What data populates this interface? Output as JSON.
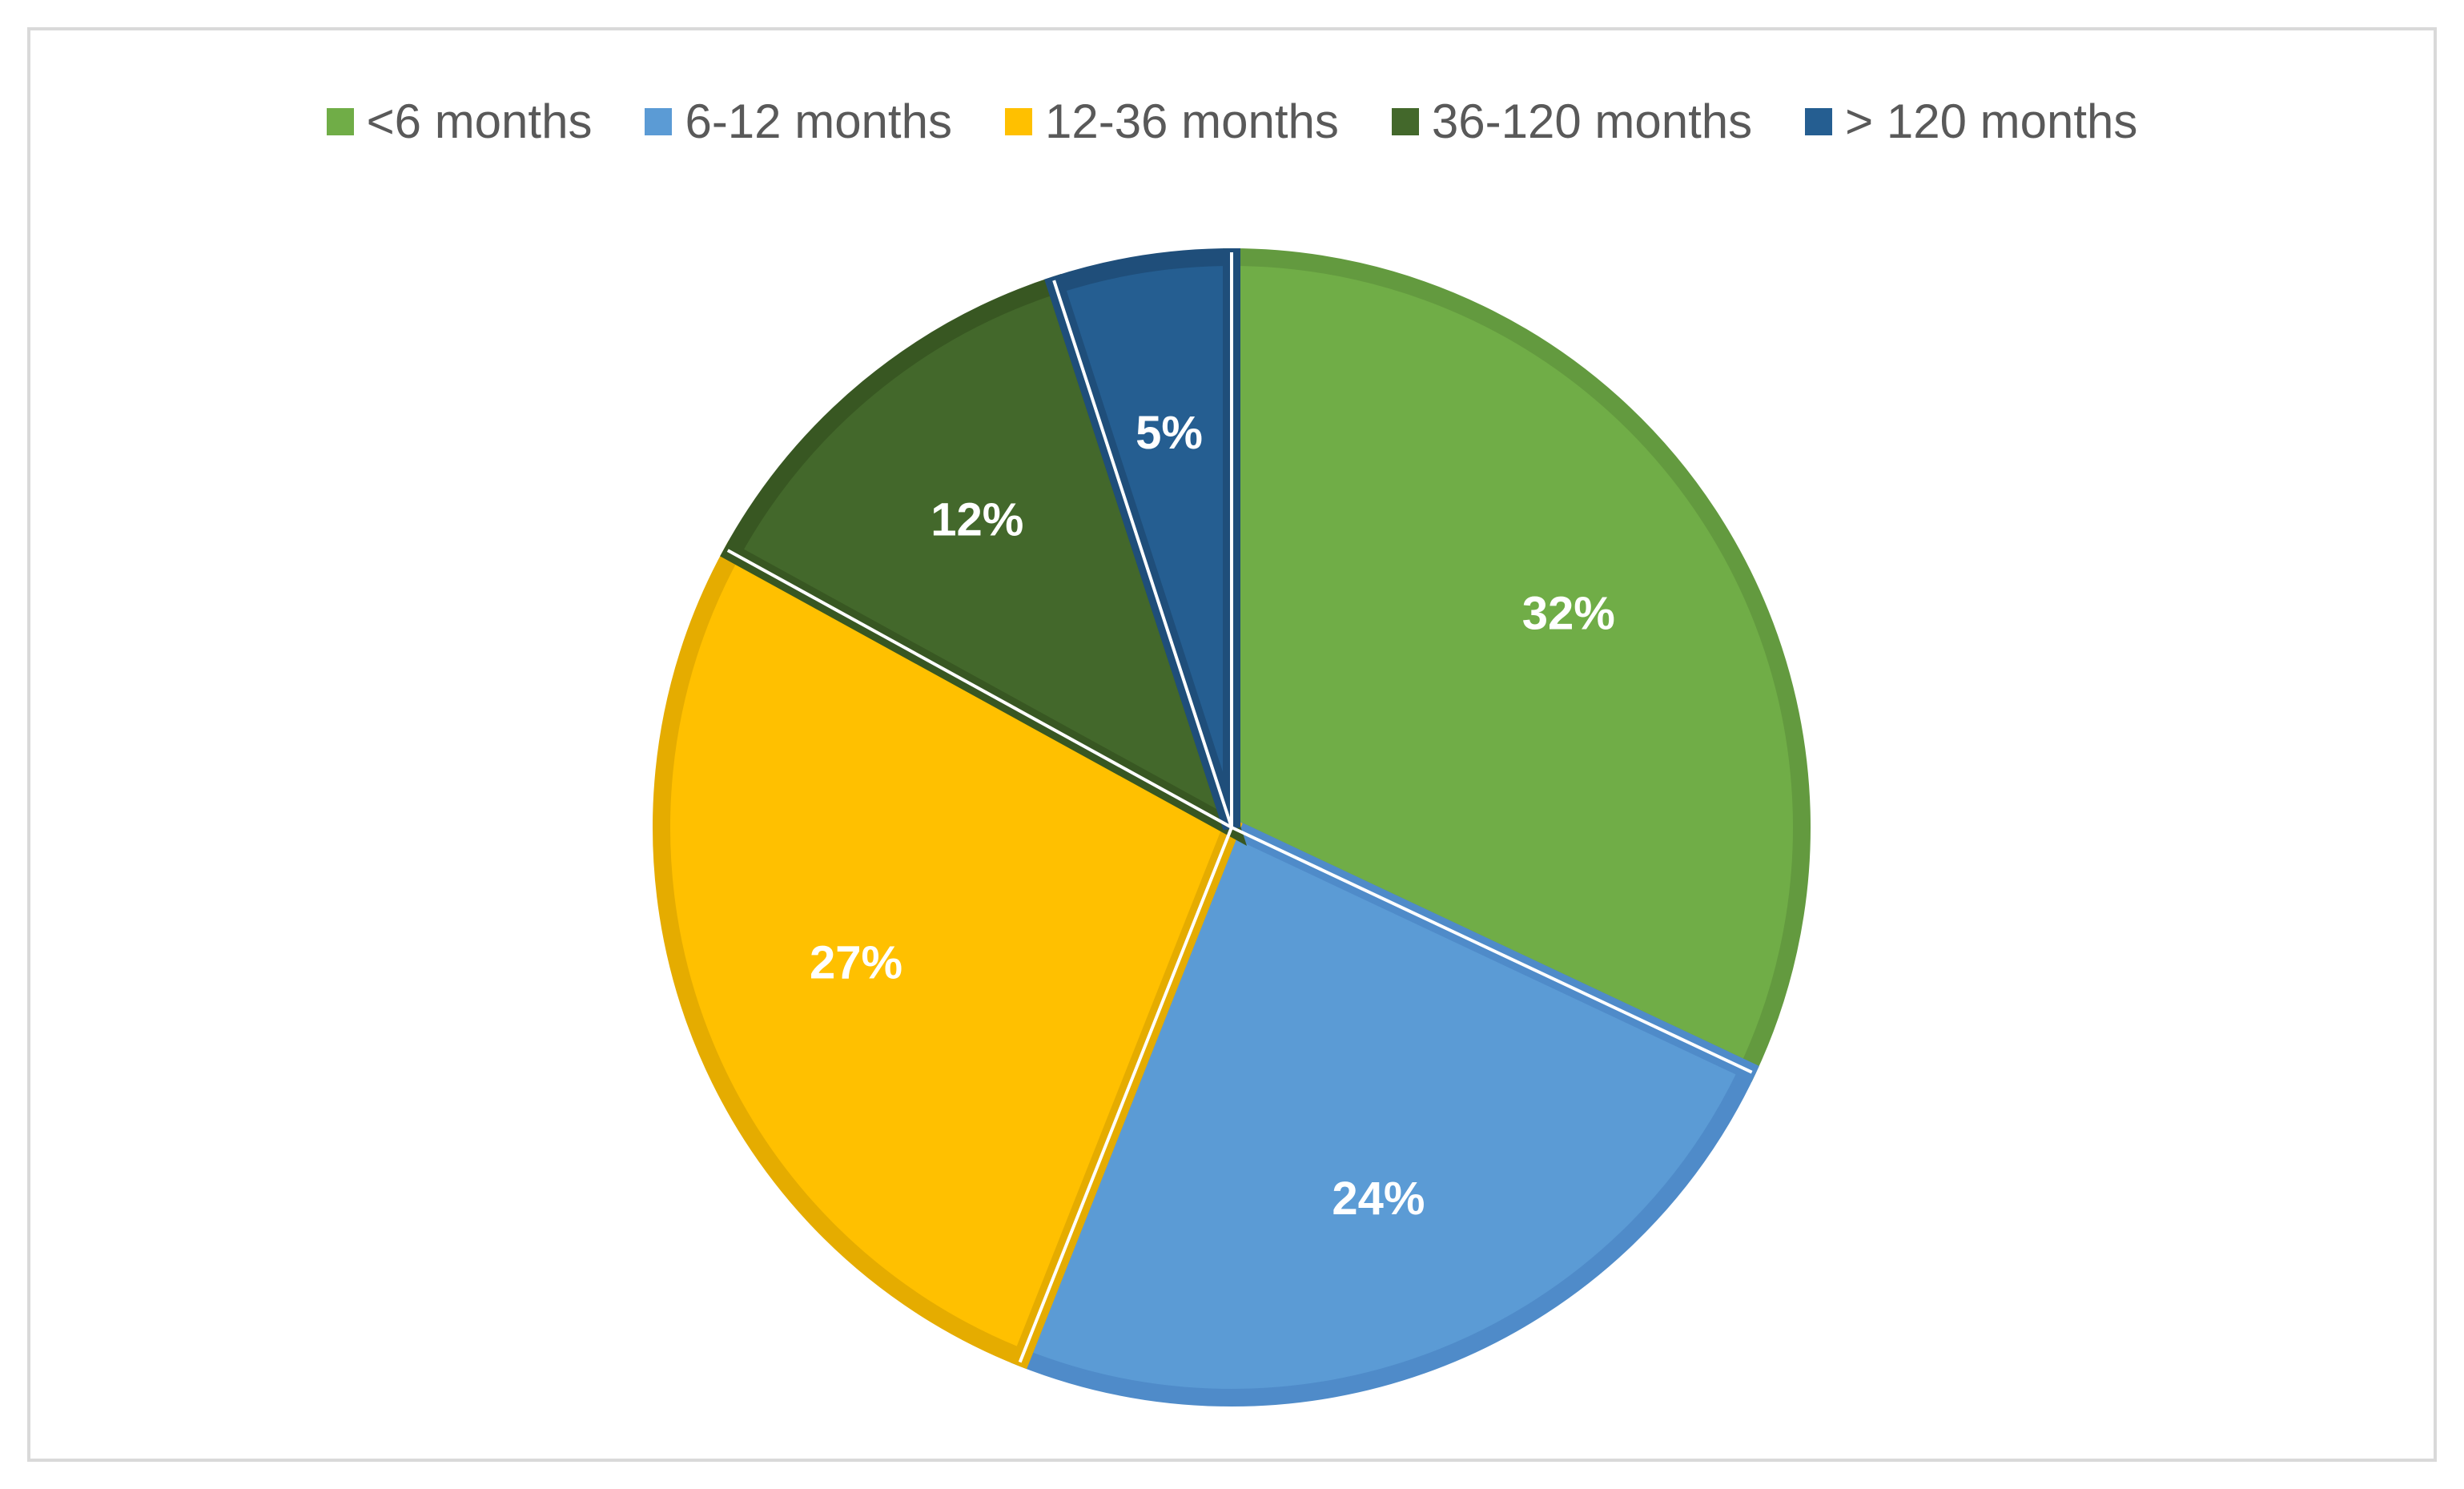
{
  "chart_data": {
    "type": "pie",
    "title": "",
    "categories": [
      "<6 months",
      "6-12 months",
      "12-36 months",
      "36-120 months",
      "> 120 months"
    ],
    "values": [
      32,
      24,
      27,
      12,
      5
    ],
    "labels": [
      "32%",
      "24%",
      "27%",
      "12%",
      "5%"
    ],
    "colors": [
      "#70AD47",
      "#5B9BD5",
      "#FFC000",
      "#43682B",
      "#255E91"
    ],
    "border_colors": [
      "#639A3F",
      "#4F8BC9",
      "#E5AC00",
      "#385722",
      "#1F4E7A"
    ],
    "start_angle_deg": 0,
    "direction": "clockwise",
    "legend_position": "top"
  }
}
